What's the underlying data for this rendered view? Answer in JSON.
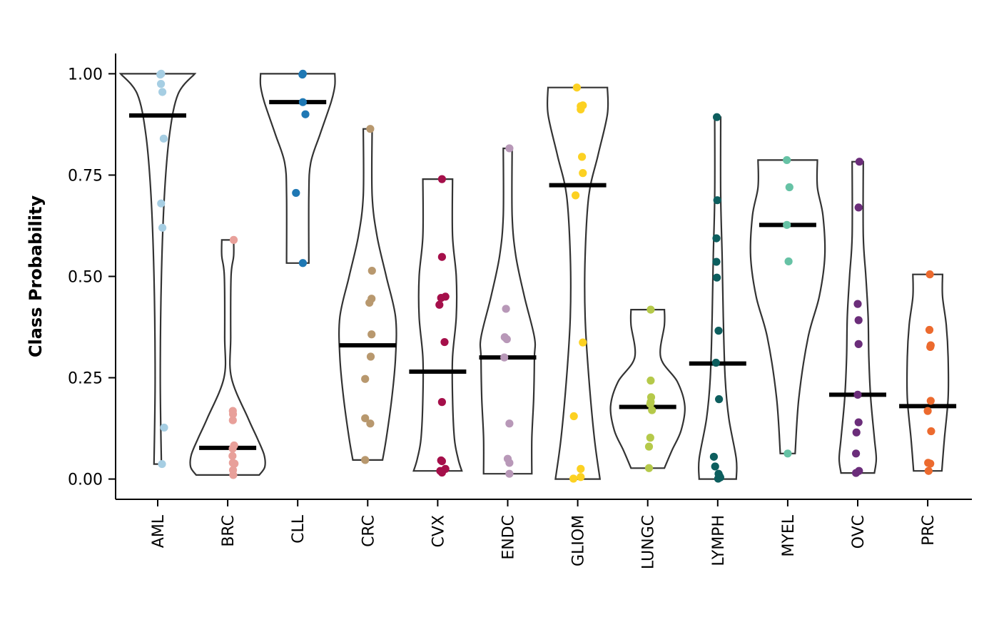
{
  "chart_data": {
    "type": "violin",
    "title": "",
    "xlabel": "",
    "ylabel": "Class Probability",
    "ylim": [
      -0.05,
      1.05
    ],
    "yticks": [
      0.0,
      0.25,
      0.5,
      0.75,
      1.0
    ],
    "ytick_labels": [
      "0.00",
      "0.25",
      "0.50",
      "0.75",
      "1.00"
    ],
    "grid": false,
    "legend": "none",
    "categories": [
      "AML",
      "BRC",
      "CLL",
      "CRC",
      "CVX",
      "ENDC",
      "GLIOM",
      "LUNGC",
      "LYMPH",
      "MYEL",
      "OVC",
      "PRC"
    ],
    "series": [
      {
        "category": "AML",
        "color": "#a6cee3",
        "median": 0.897,
        "min": 0.037,
        "max": 1.0,
        "profile": [
          [
            0.037,
            0.1
          ],
          [
            0.25,
            0.07
          ],
          [
            0.5,
            0.1
          ],
          [
            0.7,
            0.18
          ],
          [
            0.85,
            0.32
          ],
          [
            0.95,
            0.55
          ],
          [
            1.0,
            1.0
          ]
        ],
        "points": [
          [
            0.41,
            1.0
          ],
          [
            0.31,
            0.998
          ],
          [
            0.38,
            0.975
          ],
          [
            0.55,
            0.955
          ],
          [
            0.7,
            0.84
          ],
          [
            0.4,
            0.68
          ],
          [
            0.55,
            0.62
          ],
          [
            0.75,
            0.127
          ],
          [
            0.5,
            0.037
          ]
        ]
      },
      {
        "category": "BRC",
        "color": "#e8a09a",
        "median": 0.077,
        "min": 0.01,
        "max": 0.59,
        "profile": [
          [
            0.01,
            0.85
          ],
          [
            0.03,
            1.0
          ],
          [
            0.06,
            0.98
          ],
          [
            0.1,
            0.8
          ],
          [
            0.15,
            0.55
          ],
          [
            0.25,
            0.1
          ],
          [
            0.35,
            0.08
          ],
          [
            0.5,
            0.09
          ],
          [
            0.55,
            0.16
          ],
          [
            0.59,
            0.16
          ]
        ],
        "points": [
          [
            0.7,
            0.59
          ],
          [
            0.6,
            0.168
          ],
          [
            0.62,
            0.16
          ],
          [
            0.6,
            0.145
          ],
          [
            0.75,
            0.083
          ],
          [
            0.58,
            0.075
          ],
          [
            0.56,
            0.057
          ],
          [
            0.6,
            0.04
          ],
          [
            0.8,
            0.038
          ],
          [
            0.62,
            0.022
          ],
          [
            0.65,
            0.01
          ]
        ]
      },
      {
        "category": "CLL",
        "color": "#1f78b4",
        "median": 0.93,
        "min": 0.533,
        "max": 1.0,
        "profile": [
          [
            0.533,
            0.3
          ],
          [
            0.7,
            0.3
          ],
          [
            0.78,
            0.35
          ],
          [
            0.85,
            0.6
          ],
          [
            0.93,
            0.9
          ],
          [
            0.97,
            1.0
          ],
          [
            1.0,
            1.0
          ]
        ],
        "points": [
          [
            0.6,
            1.0
          ],
          [
            0.55,
            0.998
          ],
          [
            0.6,
            0.93
          ],
          [
            0.9,
            0.9
          ],
          [
            -0.2,
            0.706
          ],
          [
            0.6,
            0.533
          ]
        ]
      },
      {
        "category": "CRC",
        "color": "#b8986e",
        "median": 0.33,
        "min": 0.047,
        "max": 0.864,
        "profile": [
          [
            0.047,
            0.4
          ],
          [
            0.1,
            0.5
          ],
          [
            0.2,
            0.65
          ],
          [
            0.3,
            0.75
          ],
          [
            0.4,
            0.75
          ],
          [
            0.5,
            0.5
          ],
          [
            0.6,
            0.25
          ],
          [
            0.7,
            0.12
          ],
          [
            0.864,
            0.12
          ]
        ],
        "points": [
          [
            0.3,
            0.864
          ],
          [
            0.5,
            0.514
          ],
          [
            0.45,
            0.445
          ],
          [
            0.2,
            0.435
          ],
          [
            0.45,
            0.357
          ],
          [
            0.35,
            0.302
          ],
          [
            -0.3,
            0.247
          ],
          [
            -0.3,
            0.15
          ],
          [
            0.3,
            0.137
          ],
          [
            -0.3,
            0.047
          ]
        ]
      },
      {
        "category": "CVX",
        "color": "#a50f4a",
        "median": 0.265,
        "min": 0.02,
        "max": 0.74,
        "profile": [
          [
            0.02,
            0.65
          ],
          [
            0.05,
            0.55
          ],
          [
            0.1,
            0.45
          ],
          [
            0.2,
            0.4
          ],
          [
            0.3,
            0.4
          ],
          [
            0.4,
            0.5
          ],
          [
            0.5,
            0.5
          ],
          [
            0.6,
            0.4
          ],
          [
            0.74,
            0.4
          ]
        ],
        "points": [
          [
            0.5,
            0.74
          ],
          [
            0.5,
            0.548
          ],
          [
            0.9,
            0.45
          ],
          [
            0.4,
            0.447
          ],
          [
            0.2,
            0.43
          ],
          [
            0.8,
            0.338
          ],
          [
            0.5,
            0.19
          ],
          [
            0.4,
            0.046
          ],
          [
            0.5,
            0.044
          ],
          [
            0.9,
            0.025
          ],
          [
            0.3,
            0.02
          ],
          [
            0.5,
            0.016
          ]
        ]
      },
      {
        "category": "ENDC",
        "color": "#b898b8",
        "median": 0.3,
        "min": 0.013,
        "max": 0.816,
        "profile": [
          [
            0.013,
            0.65
          ],
          [
            0.1,
            0.65
          ],
          [
            0.2,
            0.7
          ],
          [
            0.3,
            0.72
          ],
          [
            0.35,
            0.72
          ],
          [
            0.45,
            0.45
          ],
          [
            0.55,
            0.22
          ],
          [
            0.65,
            0.12
          ],
          [
            0.816,
            0.12
          ]
        ],
        "points": [
          [
            0.2,
            0.816
          ],
          [
            -0.2,
            0.42
          ],
          [
            -0.35,
            0.35
          ],
          [
            -0.1,
            0.345
          ],
          [
            -0.4,
            0.3
          ],
          [
            0.2,
            0.137
          ],
          [
            0.0,
            0.05
          ],
          [
            0.2,
            0.04
          ],
          [
            0.2,
            0.013
          ]
        ]
      },
      {
        "category": "GLIOM",
        "color": "#fcd122",
        "median": 0.725,
        "min": 0.0,
        "max": 0.966,
        "profile": [
          [
            0.0,
            0.6
          ],
          [
            0.1,
            0.45
          ],
          [
            0.25,
            0.3
          ],
          [
            0.4,
            0.2
          ],
          [
            0.55,
            0.2
          ],
          [
            0.7,
            0.3
          ],
          [
            0.8,
            0.55
          ],
          [
            0.9,
            0.8
          ],
          [
            0.966,
            0.8
          ]
        ],
        "points": [
          [
            -0.1,
            0.966
          ],
          [
            0.6,
            0.922
          ],
          [
            0.35,
            0.92
          ],
          [
            0.35,
            0.912
          ],
          [
            0.5,
            0.795
          ],
          [
            0.6,
            0.755
          ],
          [
            -0.25,
            0.7
          ],
          [
            0.6,
            0.337
          ],
          [
            -0.45,
            0.155
          ],
          [
            0.35,
            0.025
          ],
          [
            0.35,
            0.005
          ],
          [
            -0.5,
            0.001
          ]
        ]
      },
      {
        "category": "LUNGC",
        "color": "#b5c94a",
        "median": 0.178,
        "min": 0.027,
        "max": 0.418,
        "profile": [
          [
            0.027,
            0.45
          ],
          [
            0.07,
            0.65
          ],
          [
            0.12,
            0.9
          ],
          [
            0.18,
            1.0
          ],
          [
            0.24,
            0.8
          ],
          [
            0.3,
            0.35
          ],
          [
            0.38,
            0.45
          ],
          [
            0.418,
            0.45
          ]
        ],
        "points": [
          [
            0.35,
            0.418
          ],
          [
            0.35,
            0.243
          ],
          [
            0.4,
            0.202
          ],
          [
            0.35,
            0.19
          ],
          [
            0.3,
            0.185
          ],
          [
            0.5,
            0.17
          ],
          [
            0.3,
            0.102
          ],
          [
            0.15,
            0.08
          ],
          [
            0.15,
            0.027
          ]
        ]
      },
      {
        "category": "LYMPH",
        "color": "#0d5e5e",
        "median": 0.285,
        "min": 0.0,
        "max": 0.893,
        "profile": [
          [
            0.0,
            0.5
          ],
          [
            0.05,
            0.5
          ],
          [
            0.15,
            0.3
          ],
          [
            0.25,
            0.2
          ],
          [
            0.4,
            0.15
          ],
          [
            0.55,
            0.12
          ],
          [
            0.7,
            0.08
          ],
          [
            0.893,
            0.08
          ]
        ],
        "points": [
          [
            -0.1,
            0.893
          ],
          [
            -0.05,
            0.688
          ],
          [
            -0.15,
            0.594
          ],
          [
            -0.15,
            0.536
          ],
          [
            -0.1,
            0.497
          ],
          [
            0.1,
            0.366
          ],
          [
            -0.2,
            0.287
          ],
          [
            0.15,
            0.197
          ],
          [
            -0.45,
            0.055
          ],
          [
            -0.3,
            0.031
          ],
          [
            0.1,
            0.013
          ],
          [
            0.2,
            0.008
          ],
          [
            0.3,
            0.004
          ],
          [
            0.05,
            0.001
          ]
        ]
      },
      {
        "category": "MYEL",
        "color": "#66c2a5",
        "median": 0.627,
        "min": 0.063,
        "max": 0.787,
        "profile": [
          [
            0.063,
            0.2
          ],
          [
            0.2,
            0.3
          ],
          [
            0.35,
            0.55
          ],
          [
            0.45,
            0.85
          ],
          [
            0.55,
            1.0
          ],
          [
            0.65,
            0.95
          ],
          [
            0.72,
            0.8
          ],
          [
            0.787,
            0.8
          ]
        ],
        "points": [
          [
            -0.1,
            0.787
          ],
          [
            0.2,
            0.72
          ],
          [
            -0.1,
            0.627
          ],
          [
            0.1,
            0.537
          ],
          [
            0.0,
            0.063
          ]
        ]
      },
      {
        "category": "OVC",
        "color": "#6b2d7a",
        "median": 0.208,
        "min": 0.015,
        "max": 0.783,
        "profile": [
          [
            0.015,
            0.45
          ],
          [
            0.05,
            0.5
          ],
          [
            0.1,
            0.45
          ],
          [
            0.2,
            0.35
          ],
          [
            0.3,
            0.3
          ],
          [
            0.4,
            0.28
          ],
          [
            0.5,
            0.22
          ],
          [
            0.6,
            0.15
          ],
          [
            0.783,
            0.15
          ]
        ],
        "points": [
          [
            0.2,
            0.783
          ],
          [
            0.1,
            0.67
          ],
          [
            0.0,
            0.432
          ],
          [
            0.1,
            0.392
          ],
          [
            0.1,
            0.333
          ],
          [
            0.0,
            0.208
          ],
          [
            0.1,
            0.14
          ],
          [
            -0.15,
            0.115
          ],
          [
            -0.2,
            0.063
          ],
          [
            0.15,
            0.02
          ],
          [
            -0.2,
            0.015
          ]
        ]
      },
      {
        "category": "PRC",
        "color": "#ec6a2e",
        "median": 0.18,
        "min": 0.02,
        "max": 0.505,
        "profile": [
          [
            0.02,
            0.38
          ],
          [
            0.1,
            0.45
          ],
          [
            0.2,
            0.55
          ],
          [
            0.3,
            0.55
          ],
          [
            0.38,
            0.5
          ],
          [
            0.45,
            0.4
          ],
          [
            0.505,
            0.4
          ]
        ],
        "points": [
          [
            0.25,
            0.505
          ],
          [
            0.2,
            0.368
          ],
          [
            0.35,
            0.33
          ],
          [
            0.3,
            0.326
          ],
          [
            0.35,
            0.193
          ],
          [
            0.0,
            0.168
          ],
          [
            0.4,
            0.118
          ],
          [
            0.05,
            0.04
          ],
          [
            0.3,
            0.038
          ],
          [
            0.1,
            0.02
          ]
        ]
      }
    ]
  }
}
